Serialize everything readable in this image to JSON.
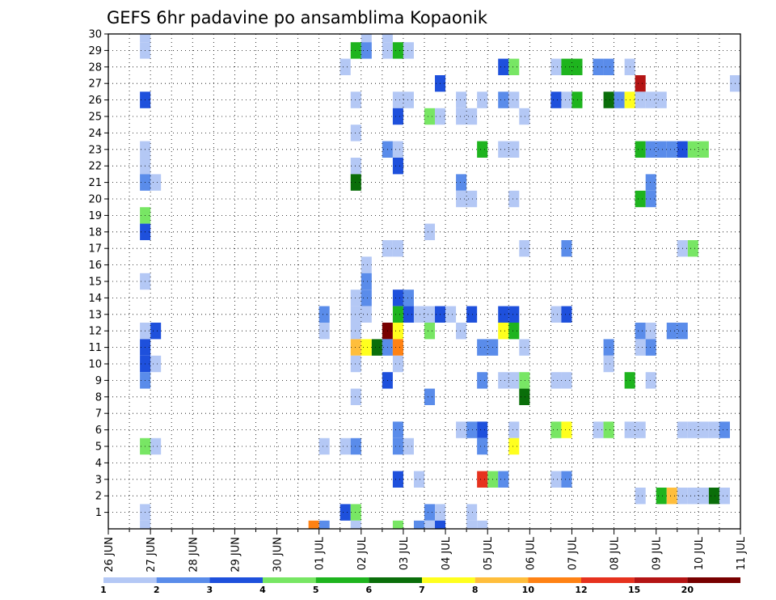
{
  "chart_data": {
    "type": "heatmap",
    "title": "GEFS 6hr padavine po ansamblima Kopaonik",
    "xlabel": "",
    "ylabel": "",
    "x_start": "2014-06-26T00:00",
    "x_end": "2014-07-11T00:00",
    "x_step_hours": 6,
    "x_tick_labels": [
      "26 JUN",
      "27 JUN",
      "28 JUN",
      "29 JUN",
      "30 JUN",
      "01 JUL",
      "02 JUL",
      "03 JUL",
      "04 JUL",
      "05 JUL",
      "06 JUL",
      "07 JUL",
      "08 JUL",
      "09 JUL",
      "10 JUL",
      "11 JUL"
    ],
    "y_tick_labels": [
      "1",
      "2",
      "3",
      "4",
      "5",
      "6",
      "7",
      "8",
      "9",
      "10",
      "11",
      "12",
      "13",
      "14",
      "15",
      "16",
      "17",
      "18",
      "19",
      "20",
      "21",
      "22",
      "23",
      "24",
      "25",
      "26",
      "27",
      "28",
      "29",
      "30"
    ],
    "ylim": [
      0,
      30
    ],
    "grid": true,
    "colorbar": {
      "position": "bottom",
      "labels": [
        "1",
        "2",
        "3",
        "4",
        "5",
        "6",
        "7",
        "8",
        "10",
        "12",
        "15",
        "20"
      ],
      "colors": [
        "#b4c8f5",
        "#5a8cea",
        "#1e50dc",
        "#78e664",
        "#1eb41e",
        "#0a6e0a",
        "#ffff1e",
        "#ffbe3c",
        "#ff8214",
        "#e6321e",
        "#b41414",
        "#780000"
      ]
    },
    "cells": [
      [
        "2014-06-26T18:00",
        30,
        1
      ],
      [
        "2014-06-26T18:00",
        29,
        1
      ],
      [
        "2014-06-26T18:00",
        26,
        3
      ],
      [
        "2014-06-26T18:00",
        23,
        1
      ],
      [
        "2014-06-26T18:00",
        22,
        1
      ],
      [
        "2014-06-26T18:00",
        21,
        2
      ],
      [
        "2014-06-27T00:00",
        21,
        1
      ],
      [
        "2014-06-26T18:00",
        19,
        4
      ],
      [
        "2014-06-26T18:00",
        18,
        3
      ],
      [
        "2014-06-26T18:00",
        15,
        1
      ],
      [
        "2014-06-26T18:00",
        12,
        1
      ],
      [
        "2014-06-27T00:00",
        12,
        3
      ],
      [
        "2014-06-26T18:00",
        11,
        3
      ],
      [
        "2014-06-26T18:00",
        10,
        3
      ],
      [
        "2014-06-27T00:00",
        10,
        1
      ],
      [
        "2014-06-26T18:00",
        9,
        2
      ],
      [
        "2014-06-26T18:00",
        5,
        4
      ],
      [
        "2014-06-27T00:00",
        5,
        1
      ],
      [
        "2014-06-26T18:00",
        1,
        1
      ],
      [
        "2014-06-26T18:00",
        0,
        1
      ],
      [
        "2014-07-01T00:00",
        13,
        2
      ],
      [
        "2014-07-01T00:00",
        12,
        1
      ],
      [
        "2014-07-01T00:00",
        5,
        1
      ],
      [
        "2014-07-01T00:00",
        0,
        2
      ],
      [
        "2014-06-30T18:00",
        0,
        9
      ],
      [
        "2014-07-01T12:00",
        28,
        1
      ],
      [
        "2014-07-01T12:00",
        5,
        1
      ],
      [
        "2014-07-01T12:00",
        1,
        3
      ],
      [
        "2014-07-01T18:00",
        29,
        5
      ],
      [
        "2014-07-01T18:00",
        26,
        1
      ],
      [
        "2014-07-01T18:00",
        24,
        1
      ],
      [
        "2014-07-01T18:00",
        22,
        1
      ],
      [
        "2014-07-01T18:00",
        21,
        6
      ],
      [
        "2014-07-01T18:00",
        14,
        1
      ],
      [
        "2014-07-01T18:00",
        13,
        1
      ],
      [
        "2014-07-01T18:00",
        12,
        1
      ],
      [
        "2014-07-01T18:00",
        11,
        8
      ],
      [
        "2014-07-01T18:00",
        10,
        1
      ],
      [
        "2014-07-01T18:00",
        8,
        1
      ],
      [
        "2014-07-01T18:00",
        5,
        2
      ],
      [
        "2014-07-01T18:00",
        1,
        4
      ],
      [
        "2014-07-01T18:00",
        0,
        1
      ],
      [
        "2014-07-02T00:00",
        30,
        1
      ],
      [
        "2014-07-02T00:00",
        29,
        2
      ],
      [
        "2014-07-02T00:00",
        16,
        1
      ],
      [
        "2014-07-02T00:00",
        15,
        2
      ],
      [
        "2014-07-02T00:00",
        14,
        2
      ],
      [
        "2014-07-02T00:00",
        13,
        1
      ],
      [
        "2014-07-02T00:00",
        11,
        7
      ],
      [
        "2014-07-02T06:00",
        11,
        6
      ],
      [
        "2014-07-02T12:00",
        30,
        1
      ],
      [
        "2014-07-02T12:00",
        29,
        1
      ],
      [
        "2014-07-02T12:00",
        23,
        2
      ],
      [
        "2014-07-02T12:00",
        17,
        1
      ],
      [
        "2014-07-02T12:00",
        12,
        12
      ],
      [
        "2014-07-02T12:00",
        11,
        2
      ],
      [
        "2014-07-02T12:00",
        9,
        3
      ],
      [
        "2014-07-02T18:00",
        29,
        5
      ],
      [
        "2014-07-02T18:00",
        26,
        1
      ],
      [
        "2014-07-02T18:00",
        25,
        3
      ],
      [
        "2014-07-02T18:00",
        23,
        1
      ],
      [
        "2014-07-02T18:00",
        22,
        3
      ],
      [
        "2014-07-02T18:00",
        17,
        1
      ],
      [
        "2014-07-02T18:00",
        14,
        3
      ],
      [
        "2014-07-02T18:00",
        13,
        5
      ],
      [
        "2014-07-02T18:00",
        12,
        7
      ],
      [
        "2014-07-02T18:00",
        11,
        9
      ],
      [
        "2014-07-02T18:00",
        10,
        1
      ],
      [
        "2014-07-02T18:00",
        6,
        2
      ],
      [
        "2014-07-02T18:00",
        5,
        2
      ],
      [
        "2014-07-02T18:00",
        3,
        3
      ],
      [
        "2014-07-02T18:00",
        0,
        4
      ],
      [
        "2014-07-03T00:00",
        29,
        1
      ],
      [
        "2014-07-03T00:00",
        26,
        1
      ],
      [
        "2014-07-03T00:00",
        14,
        2
      ],
      [
        "2014-07-03T00:00",
        13,
        3
      ],
      [
        "2014-07-03T00:00",
        5,
        1
      ],
      [
        "2014-07-03T06:00",
        13,
        1
      ],
      [
        "2014-07-03T06:00",
        3,
        1
      ],
      [
        "2014-07-03T06:00",
        0,
        2
      ],
      [
        "2014-07-03T12:00",
        25,
        4
      ],
      [
        "2014-07-03T12:00",
        18,
        1
      ],
      [
        "2014-07-03T12:00",
        13,
        1
      ],
      [
        "2014-07-03T12:00",
        12,
        4
      ],
      [
        "2014-07-03T12:00",
        8,
        2
      ],
      [
        "2014-07-03T12:00",
        1,
        2
      ],
      [
        "2014-07-03T12:00",
        0,
        1
      ],
      [
        "2014-07-03T18:00",
        27,
        3
      ],
      [
        "2014-07-03T18:00",
        25,
        1
      ],
      [
        "2014-07-03T18:00",
        13,
        3
      ],
      [
        "2014-07-03T18:00",
        1,
        1
      ],
      [
        "2014-07-03T18:00",
        0,
        3
      ],
      [
        "2014-07-04T00:00",
        13,
        1
      ],
      [
        "2014-07-04T06:00",
        26,
        1
      ],
      [
        "2014-07-04T06:00",
        25,
        1
      ],
      [
        "2014-07-04T06:00",
        21,
        2
      ],
      [
        "2014-07-04T06:00",
        20,
        1
      ],
      [
        "2014-07-04T06:00",
        12,
        1
      ],
      [
        "2014-07-04T06:00",
        6,
        1
      ],
      [
        "2014-07-04T12:00",
        25,
        1
      ],
      [
        "2014-07-04T12:00",
        20,
        1
      ],
      [
        "2014-07-04T12:00",
        13,
        3
      ],
      [
        "2014-07-04T12:00",
        6,
        2
      ],
      [
        "2014-07-04T12:00",
        1,
        1
      ],
      [
        "2014-07-04T12:00",
        0,
        1
      ],
      [
        "2014-07-04T18:00",
        26,
        1
      ],
      [
        "2014-07-04T18:00",
        23,
        5
      ],
      [
        "2014-07-04T18:00",
        11,
        2
      ],
      [
        "2014-07-04T18:00",
        9,
        2
      ],
      [
        "2014-07-04T18:00",
        6,
        3
      ],
      [
        "2014-07-04T18:00",
        5,
        2
      ],
      [
        "2014-07-04T18:00",
        3,
        10
      ],
      [
        "2014-07-04T18:00",
        0,
        1
      ],
      [
        "2014-07-05T00:00",
        11,
        2
      ],
      [
        "2014-07-05T00:00",
        3,
        4
      ],
      [
        "2014-07-05T06:00",
        28,
        3
      ],
      [
        "2014-07-05T06:00",
        26,
        2
      ],
      [
        "2014-07-05T06:00",
        23,
        1
      ],
      [
        "2014-07-05T06:00",
        13,
        3
      ],
      [
        "2014-07-05T06:00",
        12,
        7
      ],
      [
        "2014-07-05T06:00",
        9,
        1
      ],
      [
        "2014-07-05T06:00",
        3,
        2
      ],
      [
        "2014-07-05T12:00",
        28,
        4
      ],
      [
        "2014-07-05T12:00",
        26,
        1
      ],
      [
        "2014-07-05T12:00",
        23,
        1
      ],
      [
        "2014-07-05T12:00",
        20,
        1
      ],
      [
        "2014-07-05T12:00",
        13,
        3
      ],
      [
        "2014-07-05T12:00",
        12,
        5
      ],
      [
        "2014-07-05T12:00",
        9,
        1
      ],
      [
        "2014-07-05T12:00",
        6,
        1
      ],
      [
        "2014-07-05T12:00",
        5,
        7
      ],
      [
        "2014-07-05T18:00",
        25,
        1
      ],
      [
        "2014-07-05T18:00",
        17,
        1
      ],
      [
        "2014-07-05T18:00",
        11,
        1
      ],
      [
        "2014-07-05T18:00",
        9,
        4
      ],
      [
        "2014-07-05T18:00",
        8,
        6
      ],
      [
        "2014-07-06T12:00",
        28,
        1
      ],
      [
        "2014-07-06T12:00",
        26,
        3
      ],
      [
        "2014-07-06T12:00",
        13,
        1
      ],
      [
        "2014-07-06T12:00",
        9,
        1
      ],
      [
        "2014-07-06T12:00",
        6,
        4
      ],
      [
        "2014-07-06T12:00",
        3,
        1
      ],
      [
        "2014-07-06T18:00",
        28,
        5
      ],
      [
        "2014-07-06T18:00",
        26,
        1
      ],
      [
        "2014-07-06T18:00",
        17,
        2
      ],
      [
        "2014-07-06T18:00",
        13,
        3
      ],
      [
        "2014-07-06T18:00",
        9,
        1
      ],
      [
        "2014-07-06T18:00",
        6,
        7
      ],
      [
        "2014-07-06T18:00",
        3,
        2
      ],
      [
        "2014-07-07T00:00",
        28,
        5
      ],
      [
        "2014-07-07T00:00",
        26,
        5
      ],
      [
        "2014-07-07T12:00",
        28,
        2
      ],
      [
        "2014-07-07T12:00",
        6,
        1
      ],
      [
        "2014-07-07T18:00",
        28,
        2
      ],
      [
        "2014-07-07T18:00",
        26,
        6
      ],
      [
        "2014-07-07T18:00",
        11,
        2
      ],
      [
        "2014-07-07T18:00",
        10,
        1
      ],
      [
        "2014-07-07T18:00",
        6,
        4
      ],
      [
        "2014-07-08T00:00",
        26,
        2
      ],
      [
        "2014-07-08T06:00",
        28,
        1
      ],
      [
        "2014-07-08T06:00",
        26,
        7
      ],
      [
        "2014-07-08T06:00",
        9,
        5
      ],
      [
        "2014-07-08T06:00",
        6,
        1
      ],
      [
        "2014-07-08T12:00",
        27,
        11
      ],
      [
        "2014-07-08T12:00",
        26,
        1
      ],
      [
        "2014-07-08T12:00",
        23,
        5
      ],
      [
        "2014-07-08T12:00",
        20,
        5
      ],
      [
        "2014-07-08T12:00",
        12,
        2
      ],
      [
        "2014-07-08T12:00",
        11,
        1
      ],
      [
        "2014-07-08T12:00",
        6,
        1
      ],
      [
        "2014-07-08T12:00",
        2,
        1
      ],
      [
        "2014-07-08T18:00",
        26,
        1
      ],
      [
        "2014-07-08T18:00",
        23,
        2
      ],
      [
        "2014-07-08T18:00",
        21,
        2
      ],
      [
        "2014-07-08T18:00",
        20,
        2
      ],
      [
        "2014-07-08T18:00",
        12,
        1
      ],
      [
        "2014-07-08T18:00",
        11,
        2
      ],
      [
        "2014-07-08T18:00",
        9,
        1
      ],
      [
        "2014-07-09T00:00",
        26,
        1
      ],
      [
        "2014-07-09T00:00",
        23,
        2
      ],
      [
        "2014-07-09T00:00",
        2,
        5
      ],
      [
        "2014-07-09T06:00",
        23,
        2
      ],
      [
        "2014-07-09T06:00",
        12,
        2
      ],
      [
        "2014-07-09T06:00",
        2,
        8
      ],
      [
        "2014-07-09T12:00",
        23,
        3
      ],
      [
        "2014-07-09T12:00",
        17,
        1
      ],
      [
        "2014-07-09T12:00",
        12,
        2
      ],
      [
        "2014-07-09T12:00",
        6,
        1
      ],
      [
        "2014-07-09T12:00",
        2,
        1
      ],
      [
        "2014-07-09T18:00",
        23,
        4
      ],
      [
        "2014-07-09T18:00",
        17,
        4
      ],
      [
        "2014-07-09T18:00",
        6,
        1
      ],
      [
        "2014-07-09T18:00",
        2,
        1
      ],
      [
        "2014-07-10T00:00",
        23,
        4
      ],
      [
        "2014-07-10T00:00",
        6,
        1
      ],
      [
        "2014-07-10T00:00",
        2,
        1
      ],
      [
        "2014-07-10T06:00",
        6,
        1
      ],
      [
        "2014-07-10T06:00",
        2,
        6
      ],
      [
        "2014-07-10T12:00",
        6,
        2
      ],
      [
        "2014-07-10T12:00",
        2,
        1
      ],
      [
        "2014-07-10T18:00",
        27,
        1
      ]
    ]
  }
}
